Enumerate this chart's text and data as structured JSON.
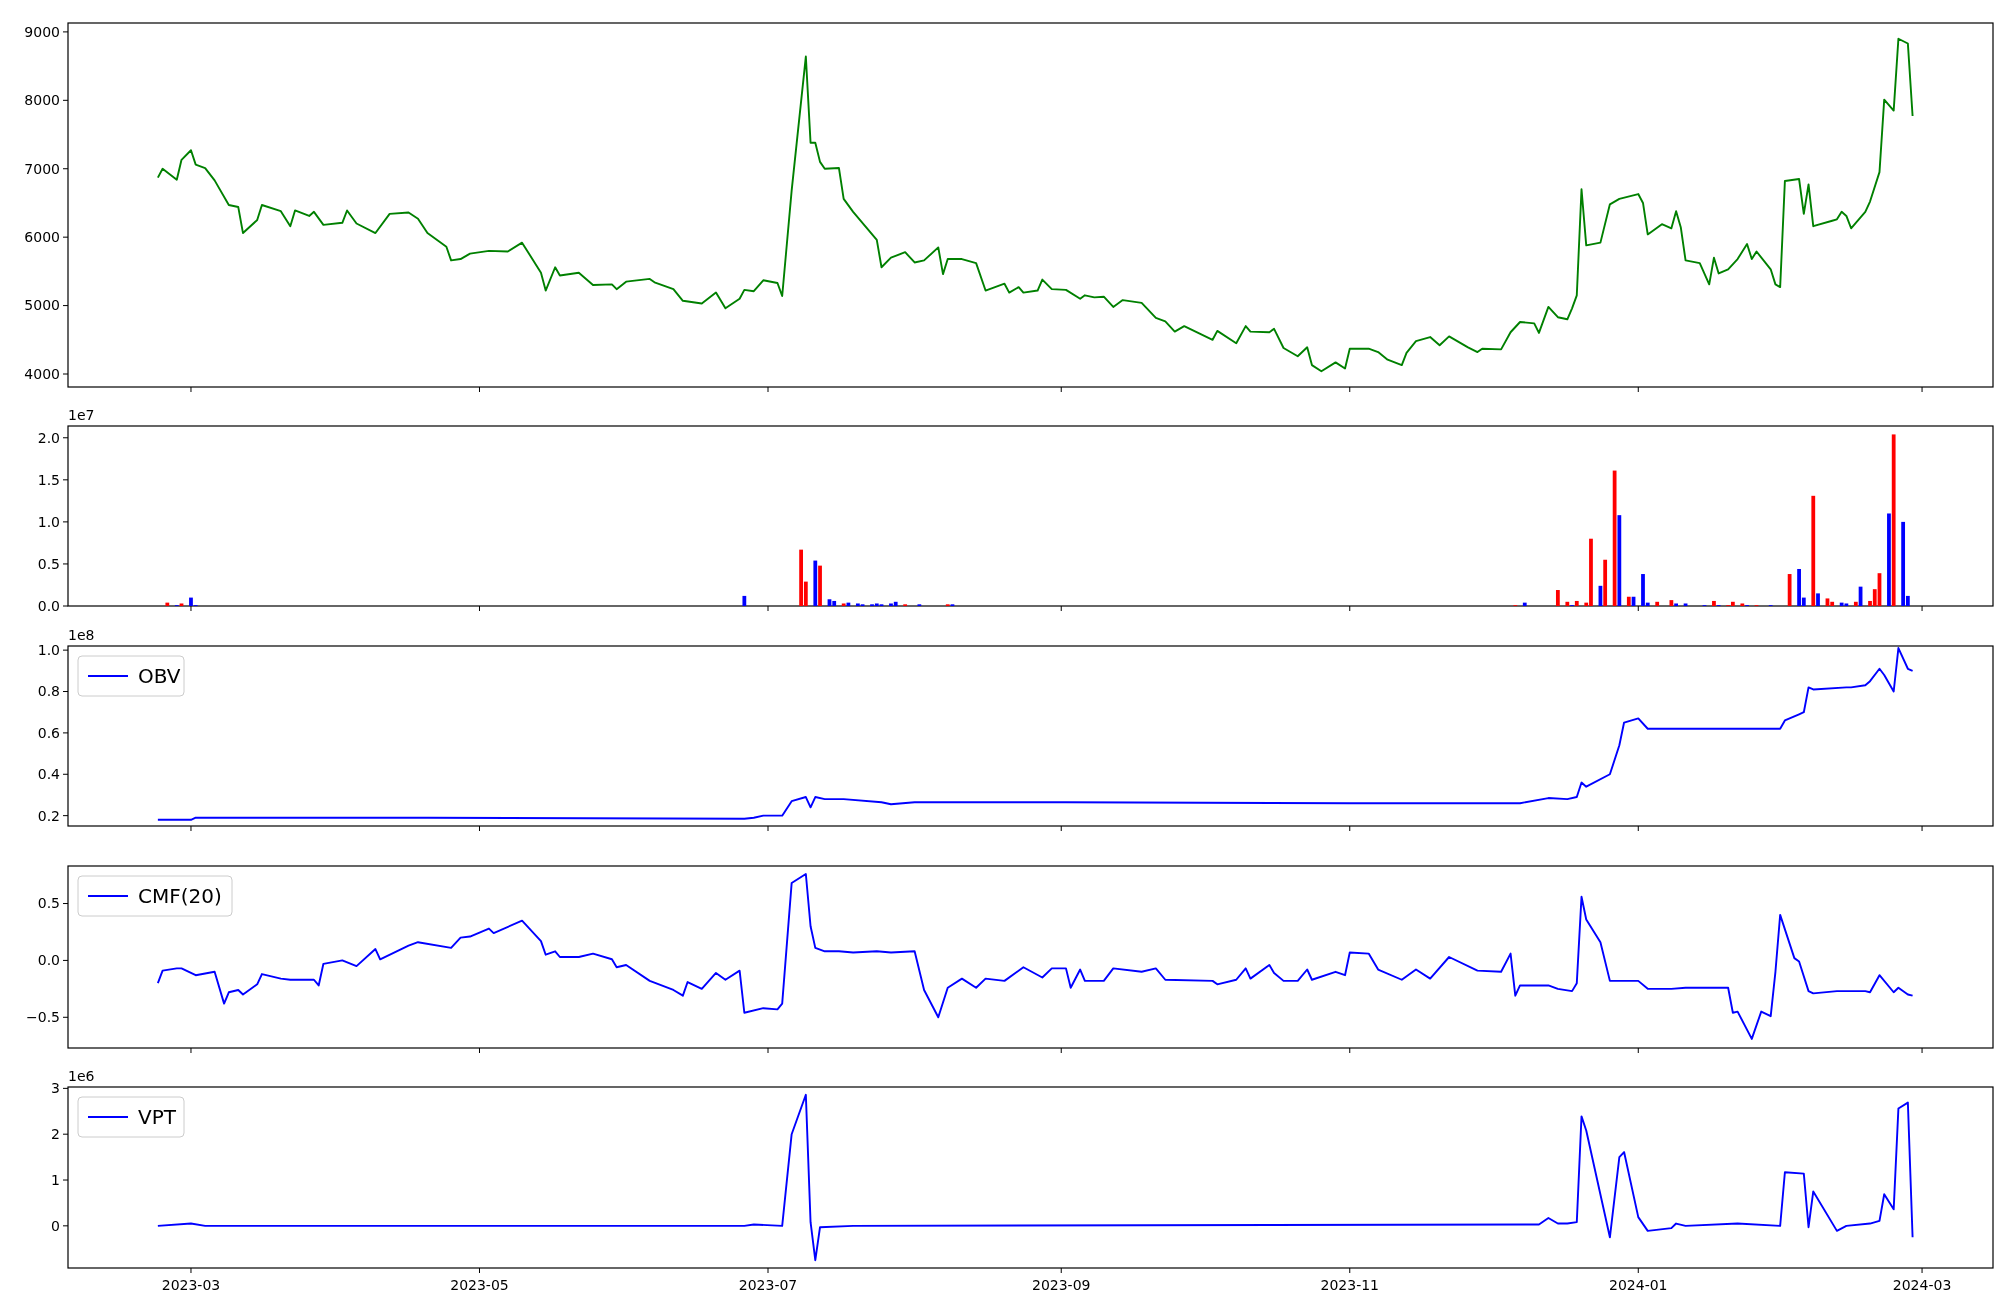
{
  "chart_data": [
    {
      "type": "line",
      "xlim": [
        "2023-02-03",
        "2024-03-16"
      ],
      "xticks": [
        {
          "value": "2023-03-01",
          "label": null
        },
        {
          "value": "2023-05-01",
          "label": null
        },
        {
          "value": "2023-07-01",
          "label": null
        },
        {
          "value": "2023-09-01",
          "label": null
        },
        {
          "value": "2023-11-01",
          "label": null
        },
        {
          "value": "2024-01-01",
          "label": null
        },
        {
          "value": "2024-03-01",
          "label": null
        }
      ],
      "tick_labels": "y",
      "ylim": [
        3810,
        9130
      ],
      "yticks": [
        4000,
        5000,
        6000,
        7000,
        8000,
        9000
      ],
      "series": [
        {
          "color": "#008000",
          "x": [
            "2023-02-22",
            "2023-02-23",
            "2023-02-26",
            "2023-02-27",
            "2023-03-01",
            "2023-03-02",
            "2023-03-04",
            "2023-03-06",
            "2023-03-09",
            "2023-03-11",
            "2023-03-12",
            "2023-03-15",
            "2023-03-16",
            "2023-03-20",
            "2023-03-22",
            "2023-03-23",
            "2023-03-26",
            "2023-03-27",
            "2023-03-29",
            "2023-04-02",
            "2023-04-03",
            "2023-04-05",
            "2023-04-09",
            "2023-04-12",
            "2023-04-16",
            "2023-04-18",
            "2023-04-20",
            "2023-04-24",
            "2023-04-25",
            "2023-04-27",
            "2023-04-29",
            "2023-05-03",
            "2023-05-07",
            "2023-05-10",
            "2023-05-14",
            "2023-05-15",
            "2023-05-17",
            "2023-05-18",
            "2023-05-22",
            "2023-05-25",
            "2023-05-29",
            "2023-05-30",
            "2023-06-01",
            "2023-06-06",
            "2023-06-07",
            "2023-06-11",
            "2023-06-13",
            "2023-06-17",
            "2023-06-20",
            "2023-06-22",
            "2023-06-25",
            "2023-06-26",
            "2023-06-28",
            "2023-06-30",
            "2023-07-03",
            "2023-07-04",
            "2023-07-06",
            "2023-07-09",
            "2023-07-10",
            "2023-07-11",
            "2023-07-12",
            "2023-07-13",
            "2023-07-16",
            "2023-07-17",
            "2023-07-19",
            "2023-07-24",
            "2023-07-25",
            "2023-07-27",
            "2023-07-30",
            "2023-08-01",
            "2023-08-03",
            "2023-08-06",
            "2023-08-07",
            "2023-08-08",
            "2023-08-11",
            "2023-08-14",
            "2023-08-16",
            "2023-08-20",
            "2023-08-21",
            "2023-08-23",
            "2023-08-24",
            "2023-08-27",
            "2023-08-28",
            "2023-08-30",
            "2023-09-02",
            "2023-09-05",
            "2023-09-06",
            "2023-09-08",
            "2023-09-10",
            "2023-09-12",
            "2023-09-14",
            "2023-09-18",
            "2023-09-21",
            "2023-09-23",
            "2023-09-25",
            "2023-09-27",
            "2023-10-03",
            "2023-10-04",
            "2023-10-08",
            "2023-10-10",
            "2023-10-11",
            "2023-10-15",
            "2023-10-16",
            "2023-10-18",
            "2023-10-21",
            "2023-10-23",
            "2023-10-24",
            "2023-10-26",
            "2023-10-29",
            "2023-10-31",
            "2023-11-01",
            "2023-11-05",
            "2023-11-07",
            "2023-11-09",
            "2023-11-12",
            "2023-11-13",
            "2023-11-15",
            "2023-11-18",
            "2023-11-20",
            "2023-11-22",
            "2023-11-26",
            "2023-11-28",
            "2023-11-29",
            "2023-12-03",
            "2023-12-05",
            "2023-12-07",
            "2023-12-10",
            "2023-12-11",
            "2023-12-13",
            "2023-12-15",
            "2023-12-17",
            "2023-12-18",
            "2023-12-19",
            "2023-12-20",
            "2023-12-21",
            "2023-12-24",
            "2023-12-26",
            "2023-12-28",
            "2024-01-01",
            "2024-01-02",
            "2024-01-03",
            "2024-01-06",
            "2024-01-08",
            "2024-01-09",
            "2024-01-10",
            "2024-01-11",
            "2024-01-14",
            "2024-01-16",
            "2024-01-17",
            "2024-01-18",
            "2024-01-20",
            "2024-01-22",
            "2024-01-24",
            "2024-01-25",
            "2024-01-26",
            "2024-01-29",
            "2024-01-30",
            "2024-01-31",
            "2024-02-01",
            "2024-02-04",
            "2024-02-05",
            "2024-02-06",
            "2024-02-07",
            "2024-02-11",
            "2024-02-12",
            "2024-02-13",
            "2024-02-14",
            "2024-02-15",
            "2024-02-18",
            "2024-02-19",
            "2024-02-21",
            "2024-02-22",
            "2024-02-24",
            "2024-02-25",
            "2024-02-27",
            "2024-02-28"
          ],
          "values": [
            6870,
            7000,
            6840,
            7130,
            7270,
            7060,
            7010,
            6830,
            6470,
            6440,
            6060,
            6250,
            6470,
            6380,
            6160,
            6390,
            6310,
            6370,
            6180,
            6210,
            6390,
            6200,
            6060,
            6340,
            6360,
            6270,
            6060,
            5860,
            5660,
            5680,
            5760,
            5800,
            5790,
            5920,
            5480,
            5220,
            5560,
            5440,
            5480,
            5300,
            5310,
            5240,
            5350,
            5390,
            5340,
            5240,
            5070,
            5030,
            5190,
            4960,
            5100,
            5230,
            5210,
            5370,
            5330,
            5140,
            6680,
            8640,
            7380,
            7380,
            7100,
            7000,
            7010,
            6560,
            6370,
            5960,
            5560,
            5700,
            5780,
            5630,
            5660,
            5850,
            5460,
            5680,
            5680,
            5620,
            5220,
            5320,
            5190,
            5270,
            5190,
            5220,
            5380,
            5240,
            5230,
            5100,
            5150,
            5120,
            5130,
            4980,
            5080,
            5040,
            4820,
            4770,
            4620,
            4700,
            4500,
            4630,
            4450,
            4700,
            4620,
            4610,
            4660,
            4380,
            4260,
            4390,
            4130,
            4040,
            4170,
            4080,
            4370,
            4370,
            4320,
            4210,
            4130,
            4310,
            4480,
            4540,
            4420,
            4550,
            4390,
            4320,
            4370,
            4360,
            4610,
            4760,
            4740,
            4600,
            4980,
            4830,
            4800,
            4960,
            5150,
            6700,
            5880,
            5920,
            6480,
            6560,
            6630,
            6500,
            6040,
            6190,
            6130,
            6380,
            6140,
            5660,
            5620,
            5310,
            5700,
            5470,
            5530,
            5680,
            5900,
            5680,
            5790,
            5530,
            5310,
            5270,
            6820,
            6850,
            6340,
            6770,
            6160,
            6240,
            6260,
            6370,
            6310,
            6130,
            6370,
            6520,
            6950,
            8010,
            7850,
            8900,
            8830,
            7770
          ]
        }
      ]
    },
    {
      "type": "bar",
      "xlim": [
        "2023-02-03",
        "2024-03-16"
      ],
      "xticks": [
        {
          "value": "2023-03-01",
          "label": null
        },
        {
          "value": "2023-05-01",
          "label": null
        },
        {
          "value": "2023-07-01",
          "label": null
        },
        {
          "value": "2023-09-01",
          "label": null
        },
        {
          "value": "2023-11-01",
          "label": null
        },
        {
          "value": "2024-01-01",
          "label": null
        },
        {
          "value": "2024-03-01",
          "label": null
        }
      ],
      "tick_labels": "y",
      "ylim": [
        0,
        2.14
      ],
      "yticks": [
        {
          "value": 0,
          "label": "0.0"
        },
        0.5,
        {
          "value": 1,
          "label": "1.0"
        },
        1.5,
        {
          "value": 2,
          "label": "2.0"
        }
      ],
      "annotations": [
        "1e7"
      ],
      "series": [
        {
          "color": "#ff0000",
          "x": [
            "2023-02-24",
            "2023-02-27",
            "2023-07-08",
            "2023-07-09",
            "2023-07-12",
            "2023-07-17",
            "2023-07-30",
            "2023-08-08",
            "2023-12-06",
            "2023-12-15",
            "2023-12-17",
            "2023-12-19",
            "2023-12-21",
            "2023-12-22",
            "2023-12-25",
            "2023-12-27",
            "2023-12-30",
            "2024-01-05",
            "2024-01-08",
            "2024-01-17",
            "2024-01-20",
            "2024-01-21",
            "2024-01-23",
            "2024-01-26",
            "2024-02-02",
            "2024-02-07",
            "2024-02-10",
            "2024-02-11",
            "2024-02-16",
            "2024-02-19",
            "2024-02-20",
            "2024-02-21",
            "2024-02-24"
          ],
          "values": [
            0.04,
            0.03,
            0.67,
            0.29,
            0.48,
            0.03,
            0.02,
            0.02,
            0.01,
            0.19,
            0.05,
            0.06,
            0.04,
            0.8,
            0.55,
            1.61,
            0.11,
            0.05,
            0.07,
            0.06,
            0.01,
            0.05,
            0.03,
            0.01,
            0.38,
            1.31,
            0.09,
            0.05,
            0.05,
            0.06,
            0.2,
            0.39,
            2.04
          ]
        },
        {
          "color": "#0000ff",
          "x": [
            "2023-02-26",
            "2023-03-01",
            "2023-03-02",
            "2023-06-26",
            "2023-07-11",
            "2023-07-14",
            "2023-07-15",
            "2023-07-18",
            "2023-07-20",
            "2023-07-21",
            "2023-07-23",
            "2023-07-24",
            "2023-07-25",
            "2023-07-27",
            "2023-07-28",
            "2023-08-02",
            "2023-08-09",
            "2023-12-08",
            "2023-12-18",
            "2023-12-24",
            "2023-12-28",
            "2023-12-31",
            "2024-01-02",
            "2024-01-03",
            "2024-01-09",
            "2024-01-11",
            "2024-01-15",
            "2024-01-18",
            "2024-01-24",
            "2024-01-29",
            "2024-02-04",
            "2024-02-05",
            "2024-02-08",
            "2024-02-13",
            "2024-02-14",
            "2024-02-17",
            "2024-02-23",
            "2024-02-26",
            "2024-02-27"
          ],
          "values": [
            0.01,
            0.1,
            0.01,
            0.12,
            0.54,
            0.08,
            0.06,
            0.04,
            0.03,
            0.02,
            0.02,
            0.03,
            0.02,
            0.03,
            0.05,
            0.02,
            0.02,
            0.04,
            0.01,
            0.24,
            1.08,
            0.11,
            0.38,
            0.04,
            0.03,
            0.03,
            0.01,
            0.01,
            0.01,
            0.01,
            0.44,
            0.1,
            0.15,
            0.04,
            0.03,
            0.23,
            1.1,
            1.0,
            0.12
          ]
        }
      ]
    },
    {
      "type": "line",
      "xlim": [
        "2023-02-03",
        "2024-03-16"
      ],
      "xticks": [
        {
          "value": "2023-03-01",
          "label": null
        },
        {
          "value": "2023-05-01",
          "label": null
        },
        {
          "value": "2023-07-01",
          "label": null
        },
        {
          "value": "2023-09-01",
          "label": null
        },
        {
          "value": "2023-11-01",
          "label": null
        },
        {
          "value": "2024-01-01",
          "label": null
        },
        {
          "value": "2024-03-01",
          "label": null
        }
      ],
      "tick_labels": "y",
      "ylim": [
        0.15,
        1.02
      ],
      "yticks": [
        0.2,
        0.4,
        0.6,
        0.8,
        {
          "value": 1,
          "label": "1.0"
        }
      ],
      "annotations": [
        "1e8"
      ],
      "legend": "top left",
      "series": [
        {
          "name": "OBV",
          "color": "#0000ff",
          "x": [
            "2023-02-22",
            "2023-03-01",
            "2023-03-02",
            "2023-04-20",
            "2023-06-26",
            "2023-06-28",
            "2023-06-30",
            "2023-07-04",
            "2023-07-06",
            "2023-07-09",
            "2023-07-10",
            "2023-07-11",
            "2023-07-13",
            "2023-07-17",
            "2023-07-25",
            "2023-07-27",
            "2023-08-01",
            "2023-09-02",
            "2023-11-01",
            "2023-12-07",
            "2023-12-13",
            "2023-12-17",
            "2023-12-19",
            "2023-12-20",
            "2023-12-21",
            "2023-12-26",
            "2023-12-28",
            "2023-12-29",
            "2024-01-01",
            "2024-01-03",
            "2024-01-11",
            "2024-01-31",
            "2024-02-01",
            "2024-02-04",
            "2024-02-05",
            "2024-02-06",
            "2024-02-07",
            "2024-02-14",
            "2024-02-15",
            "2024-02-18",
            "2024-02-19",
            "2024-02-21",
            "2024-02-22",
            "2024-02-24",
            "2024-02-25",
            "2024-02-27",
            "2024-02-28"
          ],
          "values": [
            0.18,
            0.18,
            0.19,
            0.19,
            0.185,
            0.19,
            0.2,
            0.2,
            0.27,
            0.29,
            0.24,
            0.29,
            0.28,
            0.28,
            0.265,
            0.255,
            0.265,
            0.265,
            0.26,
            0.26,
            0.285,
            0.28,
            0.29,
            0.36,
            0.34,
            0.4,
            0.54,
            0.65,
            0.67,
            0.62,
            0.62,
            0.62,
            0.66,
            0.69,
            0.7,
            0.82,
            0.81,
            0.82,
            0.82,
            0.83,
            0.85,
            0.91,
            0.88,
            0.8,
            1.01,
            0.91,
            0.9
          ]
        }
      ]
    },
    {
      "type": "line",
      "xlim": [
        "2023-02-03",
        "2024-03-16"
      ],
      "xticks": [
        {
          "value": "2023-03-01",
          "label": null
        },
        {
          "value": "2023-05-01",
          "label": null
        },
        {
          "value": "2023-07-01",
          "label": null
        },
        {
          "value": "2023-09-01",
          "label": null
        },
        {
          "value": "2023-11-01",
          "label": null
        },
        {
          "value": "2024-01-01",
          "label": null
        },
        {
          "value": "2024-03-01",
          "label": null
        }
      ],
      "tick_labels": "y",
      "ylim": [
        -0.77,
        0.83
      ],
      "yticks": [
        {
          "value": -0.5,
          "label": "−0.5"
        },
        {
          "value": 0,
          "label": "0.0"
        },
        0.5
      ],
      "legend": "top left",
      "series": [
        {
          "name": "CMF(20)",
          "color": "#0000ff",
          "x": [
            "2023-02-22",
            "2023-02-23",
            "2023-02-26",
            "2023-02-27",
            "2023-03-02",
            "2023-03-06",
            "2023-03-08",
            "2023-03-09",
            "2023-03-11",
            "2023-03-12",
            "2023-03-15",
            "2023-03-16",
            "2023-03-20",
            "2023-03-22",
            "2023-03-27",
            "2023-03-28",
            "2023-03-29",
            "2023-04-02",
            "2023-04-05",
            "2023-04-09",
            "2023-04-10",
            "2023-04-16",
            "2023-04-18",
            "2023-04-25",
            "2023-04-27",
            "2023-04-29",
            "2023-05-03",
            "2023-05-04",
            "2023-05-10",
            "2023-05-14",
            "2023-05-15",
            "2023-05-17",
            "2023-05-18",
            "2023-05-22",
            "2023-05-25",
            "2023-05-29",
            "2023-05-30",
            "2023-06-01",
            "2023-06-06",
            "2023-06-11",
            "2023-06-13",
            "2023-06-14",
            "2023-06-17",
            "2023-06-20",
            "2023-06-22",
            "2023-06-25",
            "2023-06-26",
            "2023-06-30",
            "2023-07-03",
            "2023-07-04",
            "2023-07-06",
            "2023-07-09",
            "2023-07-10",
            "2023-07-11",
            "2023-07-13",
            "2023-07-16",
            "2023-07-19",
            "2023-07-24",
            "2023-07-27",
            "2023-08-01",
            "2023-08-03",
            "2023-08-06",
            "2023-08-08",
            "2023-08-11",
            "2023-08-14",
            "2023-08-16",
            "2023-08-20",
            "2023-08-24",
            "2023-08-28",
            "2023-08-30",
            "2023-09-02",
            "2023-09-03",
            "2023-09-05",
            "2023-09-06",
            "2023-09-10",
            "2023-09-12",
            "2023-09-18",
            "2023-09-21",
            "2023-09-23",
            "2023-10-03",
            "2023-10-04",
            "2023-10-08",
            "2023-10-10",
            "2023-10-11",
            "2023-10-15",
            "2023-10-16",
            "2023-10-18",
            "2023-10-21",
            "2023-10-23",
            "2023-10-24",
            "2023-10-29",
            "2023-10-31",
            "2023-11-01",
            "2023-11-05",
            "2023-11-07",
            "2023-11-12",
            "2023-11-15",
            "2023-11-18",
            "2023-11-22",
            "2023-11-28",
            "2023-12-03",
            "2023-12-05",
            "2023-12-06",
            "2023-12-07",
            "2023-12-13",
            "2023-12-15",
            "2023-12-18",
            "2023-12-19",
            "2023-12-20",
            "2023-12-21",
            "2023-12-24",
            "2023-12-26",
            "2024-01-01",
            "2024-01-03",
            "2024-01-08",
            "2024-01-11",
            "2024-01-20",
            "2024-01-21",
            "2024-01-22",
            "2024-01-25",
            "2024-01-27",
            "2024-01-29",
            "2024-01-30",
            "2024-01-31",
            "2024-02-03",
            "2024-02-04",
            "2024-02-06",
            "2024-02-07",
            "2024-02-12",
            "2024-02-18",
            "2024-02-19",
            "2024-02-21",
            "2024-02-24",
            "2024-02-25",
            "2024-02-27",
            "2024-02-28"
          ],
          "values": [
            -0.2,
            -0.09,
            -0.07,
            -0.07,
            -0.13,
            -0.1,
            -0.38,
            -0.28,
            -0.26,
            -0.3,
            -0.21,
            -0.12,
            -0.16,
            -0.17,
            -0.17,
            -0.22,
            -0.03,
            0.0,
            -0.05,
            0.1,
            0.01,
            0.13,
            0.16,
            0.11,
            0.2,
            0.21,
            0.28,
            0.24,
            0.35,
            0.17,
            0.05,
            0.08,
            0.03,
            0.03,
            0.06,
            0.01,
            -0.06,
            -0.04,
            -0.18,
            -0.26,
            -0.31,
            -0.19,
            -0.25,
            -0.11,
            -0.17,
            -0.09,
            -0.46,
            -0.42,
            -0.43,
            -0.38,
            0.68,
            0.76,
            0.3,
            0.11,
            0.08,
            0.08,
            0.07,
            0.08,
            0.07,
            0.08,
            -0.26,
            -0.5,
            -0.24,
            -0.16,
            -0.24,
            -0.16,
            -0.18,
            -0.06,
            -0.15,
            -0.07,
            -0.07,
            -0.24,
            -0.08,
            -0.18,
            -0.18,
            -0.07,
            -0.1,
            -0.07,
            -0.17,
            -0.18,
            -0.21,
            -0.17,
            -0.07,
            -0.16,
            -0.04,
            -0.11,
            -0.18,
            -0.18,
            -0.08,
            -0.17,
            -0.1,
            -0.13,
            0.07,
            0.06,
            -0.08,
            -0.17,
            -0.08,
            -0.16,
            0.03,
            -0.09,
            -0.1,
            0.06,
            -0.31,
            -0.22,
            -0.22,
            -0.25,
            -0.27,
            -0.2,
            0.56,
            0.36,
            0.16,
            -0.18,
            -0.18,
            -0.25,
            -0.25,
            -0.24,
            -0.24,
            -0.46,
            -0.45,
            -0.69,
            -0.45,
            -0.49,
            -0.1,
            0.4,
            0.02,
            -0.01,
            -0.27,
            -0.29,
            -0.27,
            -0.27,
            -0.28,
            -0.13,
            -0.28,
            -0.24,
            -0.3,
            -0.31
          ]
        }
      ]
    },
    {
      "type": "line",
      "xlim": [
        "2023-02-03",
        "2024-03-16"
      ],
      "xticks": [
        {
          "value": "2023-03-01",
          "label": "2023-03"
        },
        {
          "value": "2023-05-01",
          "label": "2023-05"
        },
        {
          "value": "2023-07-01",
          "label": "2023-07"
        },
        {
          "value": "2023-09-01",
          "label": "2023-09"
        },
        {
          "value": "2023-11-01",
          "label": "2023-11"
        },
        {
          "value": "2024-01-01",
          "label": "2024-01"
        },
        {
          "value": "2024-03-01",
          "label": "2024-03"
        }
      ],
      "ylim": [
        -0.92,
        3.03
      ],
      "yticks": [
        0,
        1,
        2,
        3
      ],
      "annotations": [
        "1e6"
      ],
      "legend": "top left",
      "series": [
        {
          "name": "VPT",
          "color": "#0000ff",
          "x": [
            "2023-02-22",
            "2023-03-01",
            "2023-03-04",
            "2023-06-26",
            "2023-06-28",
            "2023-07-04",
            "2023-07-06",
            "2023-07-09",
            "2023-07-10",
            "2023-07-11",
            "2023-07-12",
            "2023-07-19",
            "2023-12-11",
            "2023-12-13",
            "2023-12-15",
            "2023-12-17",
            "2023-12-19",
            "2023-12-20",
            "2023-12-21",
            "2023-12-26",
            "2023-12-28",
            "2023-12-29",
            "2024-01-01",
            "2024-01-03",
            "2024-01-08",
            "2024-01-09",
            "2024-01-11",
            "2024-01-22",
            "2024-01-31",
            "2024-02-01",
            "2024-02-05",
            "2024-02-06",
            "2024-02-07",
            "2024-02-12",
            "2024-02-14",
            "2024-02-19",
            "2024-02-21",
            "2024-02-22",
            "2024-02-24",
            "2024-02-25",
            "2024-02-27",
            "2024-02-28"
          ],
          "values": [
            0,
            0.05,
            0,
            0,
            0.03,
            0,
            2.0,
            2.86,
            0.08,
            -0.75,
            -0.03,
            0,
            0.03,
            0.17,
            0.05,
            0.05,
            0.08,
            2.39,
            2.08,
            -0.25,
            1.5,
            1.61,
            0.19,
            -0.11,
            -0.05,
            0.05,
            0,
            0.05,
            0,
            1.17,
            1.14,
            -0.03,
            0.75,
            -0.11,
            0,
            0.05,
            0.11,
            0.69,
            0.36,
            2.56,
            2.69,
            -0.25
          ]
        }
      ]
    }
  ]
}
